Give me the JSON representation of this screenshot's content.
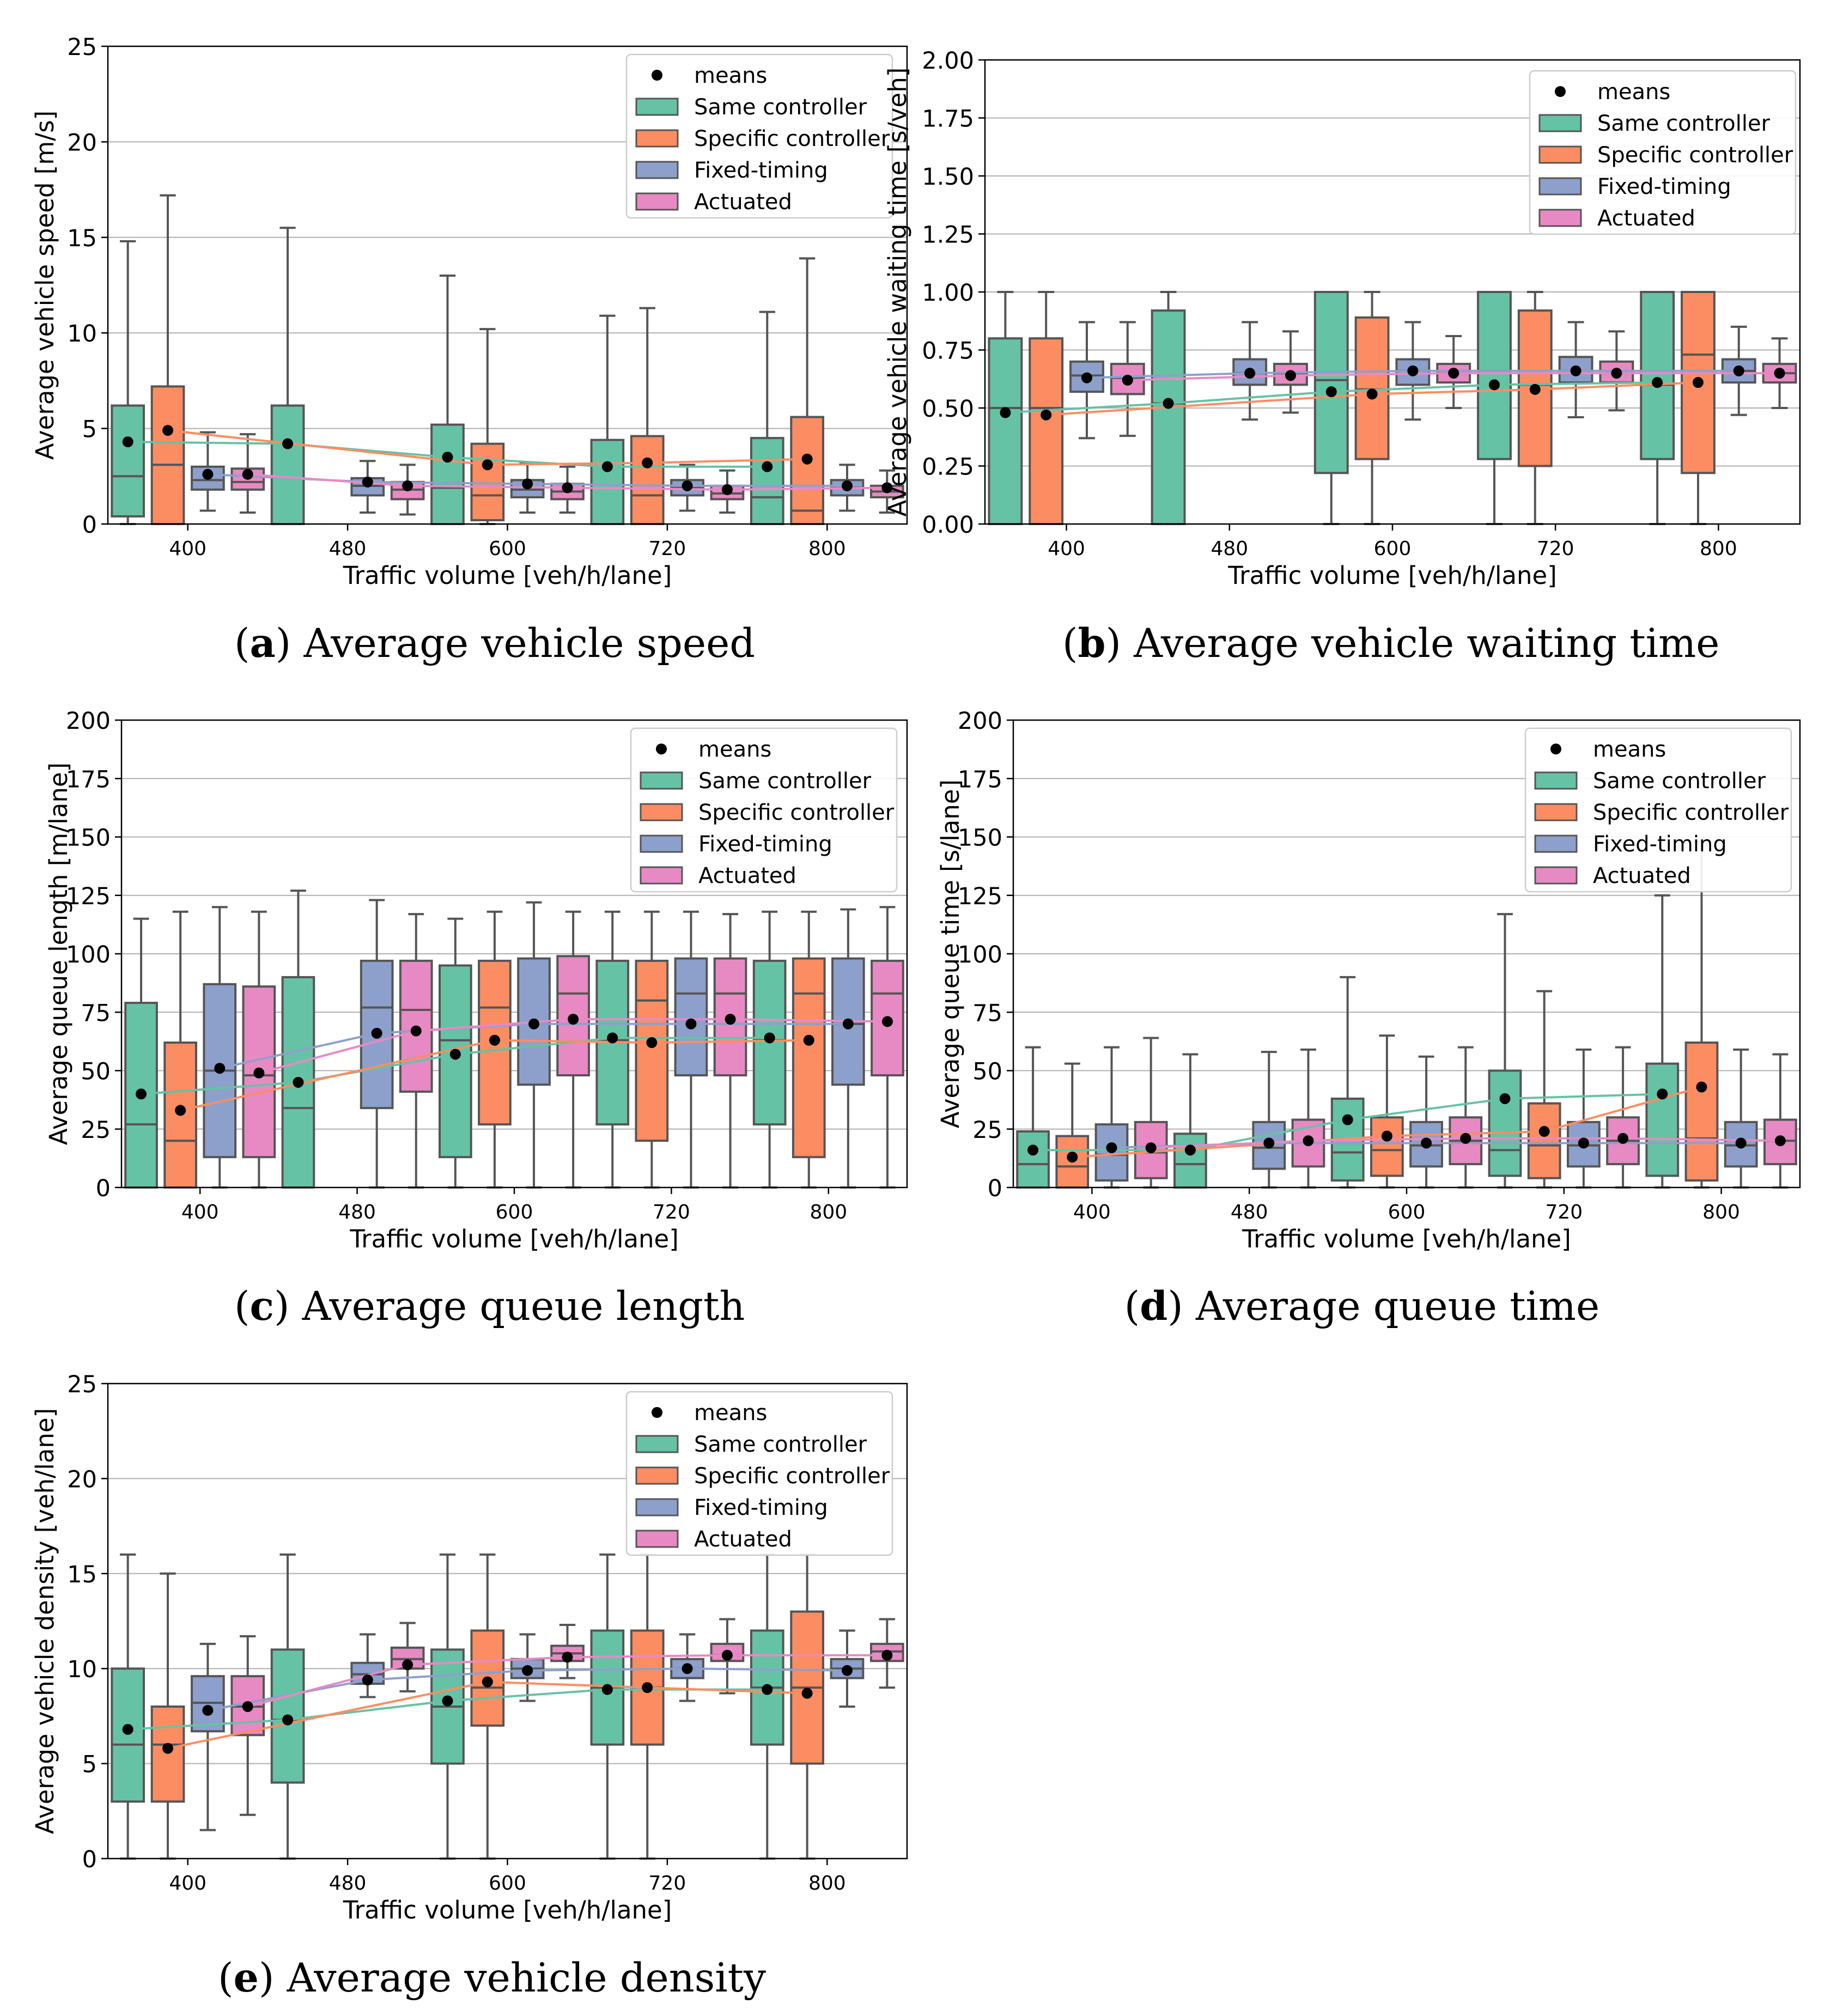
{
  "figure": {
    "panels": [
      {
        "label": "a",
        "caption": "Average vehicle speed"
      },
      {
        "label": "b",
        "caption": "Average vehicle waiting time"
      },
      {
        "label": "c",
        "caption": "Average queue length"
      },
      {
        "label": "d",
        "caption": "Average queue time"
      },
      {
        "label": "e",
        "caption": "Average vehicle density"
      }
    ]
  },
  "colors": {
    "same": "#66c2a5",
    "specific": "#fc8d62",
    "fixed": "#8da0cb",
    "actuated": "#e78ac3",
    "means": "#000000",
    "box_edge": "#555555",
    "grid": "#b0b0b0"
  },
  "chart_data": [
    {
      "type": "box",
      "panel": "a",
      "xlabel": "Traffic volume [veh/h/lane]",
      "ylabel": "Average vehicle speed [m/s]",
      "ylim": [
        0,
        25
      ],
      "yticks": [
        "0",
        "5",
        "10",
        "15",
        "20",
        "25"
      ],
      "categories": [
        "400",
        "480",
        "600",
        "720",
        "800"
      ],
      "legend": [
        "means",
        "Same controller",
        "Specific controller",
        "Fixed-timing",
        "Actuated"
      ],
      "series": [
        {
          "name": "Same controller",
          "key": "same",
          "boxes": [
            [
              0,
              0.4,
              2.5,
              6.2,
              14.8
            ],
            [
              0,
              0,
              0,
              6.2,
              15.5
            ],
            [
              0,
              0,
              1.9,
              5.2,
              13.0
            ],
            [
              0,
              0,
              0,
              4.4,
              10.9
            ],
            [
              0,
              0,
              1.4,
              4.5,
              11.1
            ]
          ],
          "means": [
            4.3,
            4.2,
            3.5,
            3.0,
            3.0
          ]
        },
        {
          "name": "Specific controller",
          "key": "specific",
          "boxes": [
            [
              0,
              0,
              3.1,
              7.2,
              17.2
            ],
            null,
            [
              0,
              0.2,
              1.5,
              4.2,
              10.2
            ],
            [
              0,
              0,
              1.5,
              4.6,
              11.3
            ],
            [
              0,
              0,
              0.7,
              5.6,
              13.9
            ]
          ],
          "means": [
            4.9,
            null,
            3.1,
            3.2,
            3.4
          ]
        },
        {
          "name": "Fixed-timing",
          "key": "fixed",
          "boxes": [
            [
              0.7,
              1.8,
              2.3,
              3.0,
              4.8
            ],
            [
              0.6,
              1.5,
              2.0,
              2.4,
              3.3
            ],
            [
              0.6,
              1.4,
              1.8,
              2.3,
              3.2
            ],
            [
              0.7,
              1.5,
              1.9,
              2.3,
              3.1
            ],
            [
              0.7,
              1.5,
              1.9,
              2.3,
              3.1
            ]
          ],
          "means": [
            2.6,
            2.2,
            2.1,
            2.0,
            2.0
          ]
        },
        {
          "name": "Actuated",
          "key": "actuated",
          "boxes": [
            [
              0.6,
              1.8,
              2.2,
              2.9,
              4.7
            ],
            [
              0.5,
              1.3,
              1.8,
              2.2,
              3.1
            ],
            [
              0.6,
              1.3,
              1.7,
              2.1,
              3.0
            ],
            [
              0.6,
              1.3,
              1.6,
              2.0,
              2.8
            ],
            [
              0.6,
              1.4,
              1.7,
              2.0,
              2.8
            ]
          ],
          "means": [
            2.6,
            2.0,
            1.9,
            1.8,
            1.9
          ]
        }
      ]
    },
    {
      "type": "box",
      "panel": "b",
      "xlabel": "Traffic volume [veh/h/lane]",
      "ylabel": "Average vehicle waiting time [s/veh]",
      "ylim": [
        0,
        2
      ],
      "yticks": [
        "0.00",
        "0.25",
        "0.50",
        "0.75",
        "1.00",
        "1.25",
        "1.50",
        "1.75",
        "2.00"
      ],
      "categories": [
        "400",
        "480",
        "600",
        "720",
        "800"
      ],
      "legend": [
        "means",
        "Same controller",
        "Specific controller",
        "Fixed-timing",
        "Actuated"
      ],
      "series": [
        {
          "name": "Same controller",
          "key": "same",
          "boxes": [
            [
              0,
              0,
              0.5,
              0.8,
              1.0
            ],
            [
              0,
              0,
              0.52,
              0.92,
              1.0
            ],
            [
              0,
              0.22,
              0.62,
              1.0,
              1.0
            ],
            [
              0,
              0.28,
              0.66,
              1.0,
              1.0
            ],
            [
              0,
              0.28,
              0.6,
              1.0,
              1.0
            ]
          ],
          "means": [
            0.48,
            0.52,
            0.57,
            0.6,
            0.61
          ]
        },
        {
          "name": "Specific controller",
          "key": "specific",
          "boxes": [
            [
              0,
              0,
              0.5,
              0.8,
              1.0
            ],
            null,
            [
              0,
              0.28,
              0.58,
              0.89,
              1.0
            ],
            [
              0,
              0.25,
              0.6,
              0.92,
              1.0
            ],
            [
              0,
              0.22,
              0.73,
              1.0,
              1.0
            ]
          ],
          "means": [
            0.47,
            null,
            0.56,
            0.58,
            0.61
          ]
        },
        {
          "name": "Fixed-timing",
          "key": "fixed",
          "boxes": [
            [
              0.37,
              0.57,
              0.64,
              0.7,
              0.87
            ],
            [
              0.45,
              0.6,
              0.65,
              0.71,
              0.87
            ],
            [
              0.45,
              0.6,
              0.66,
              0.71,
              0.87
            ],
            [
              0.46,
              0.61,
              0.66,
              0.72,
              0.87
            ],
            [
              0.47,
              0.61,
              0.66,
              0.71,
              0.85
            ]
          ],
          "means": [
            0.63,
            0.65,
            0.66,
            0.66,
            0.66
          ]
        },
        {
          "name": "Actuated",
          "key": "actuated",
          "boxes": [
            [
              0.38,
              0.56,
              0.63,
              0.69,
              0.87
            ],
            [
              0.48,
              0.6,
              0.65,
              0.69,
              0.83
            ],
            [
              0.5,
              0.61,
              0.65,
              0.69,
              0.81
            ],
            [
              0.49,
              0.61,
              0.65,
              0.7,
              0.83
            ],
            [
              0.5,
              0.61,
              0.65,
              0.69,
              0.8
            ]
          ],
          "means": [
            0.62,
            0.64,
            0.65,
            0.65,
            0.65
          ]
        }
      ]
    },
    {
      "type": "box",
      "panel": "c",
      "xlabel": "Traffic volume [veh/h/lane]",
      "ylabel": "Average queue length [m/lane]",
      "ylim": [
        0,
        200
      ],
      "yticks": [
        "0",
        "25",
        "50",
        "75",
        "100",
        "125",
        "150",
        "175",
        "200"
      ],
      "categories": [
        "400",
        "480",
        "600",
        "720",
        "800"
      ],
      "legend": [
        "means",
        "Same controller",
        "Specific controller",
        "Fixed-timing",
        "Actuated"
      ],
      "series": [
        {
          "name": "Same controller",
          "key": "same",
          "boxes": [
            [
              0,
              0,
              27,
              79,
              115
            ],
            [
              0,
              0,
              34,
              90,
              127
            ],
            [
              0,
              13,
              63,
              95,
              115
            ],
            [
              0,
              27,
              63,
              97,
              118
            ],
            [
              0,
              27,
              63,
              97,
              118
            ]
          ],
          "means": [
            40,
            45,
            57,
            64,
            64
          ]
        },
        {
          "name": "Specific controller",
          "key": "specific",
          "boxes": [
            [
              0,
              0,
              20,
              62,
              118
            ],
            null,
            [
              0,
              27,
              77,
              97,
              118
            ],
            [
              0,
              20,
              80,
              97,
              118
            ],
            [
              0,
              13,
              83,
              98,
              118
            ]
          ],
          "means": [
            33,
            null,
            63,
            62,
            63
          ]
        },
        {
          "name": "Fixed-timing",
          "key": "fixed",
          "boxes": [
            [
              0,
              13,
              50,
              87,
              120
            ],
            [
              0,
              34,
              77,
              97,
              123
            ],
            [
              0,
              44,
              70,
              98,
              122
            ],
            [
              0,
              48,
              83,
              98,
              118
            ],
            [
              0,
              44,
              70,
              98,
              119
            ]
          ],
          "means": [
            51,
            66,
            70,
            70,
            70
          ]
        },
        {
          "name": "Actuated",
          "key": "actuated",
          "boxes": [
            [
              0,
              13,
              48,
              86,
              118
            ],
            [
              0,
              41,
              76,
              97,
              117
            ],
            [
              0,
              48,
              83,
              99,
              118
            ],
            [
              0,
              48,
              83,
              98,
              117
            ],
            [
              0,
              48,
              83,
              97,
              120
            ]
          ],
          "means": [
            49,
            67,
            72,
            72,
            71
          ]
        }
      ]
    },
    {
      "type": "box",
      "panel": "d",
      "xlabel": "Traffic volume [veh/h/lane]",
      "ylabel": "Average queue time [s/lane]",
      "ylim": [
        0,
        200
      ],
      "yticks": [
        "0",
        "25",
        "50",
        "75",
        "100",
        "125",
        "150",
        "175",
        "200"
      ],
      "categories": [
        "400",
        "480",
        "600",
        "720",
        "800"
      ],
      "legend": [
        "means",
        "Same controller",
        "Specific controller",
        "Fixed-timing",
        "Actuated"
      ],
      "series": [
        {
          "name": "Same controller",
          "key": "same",
          "boxes": [
            [
              0,
              0,
              10,
              24,
              60
            ],
            [
              0,
              0,
              10,
              23,
              57
            ],
            [
              0,
              3,
              15,
              38,
              90
            ],
            [
              0,
              5,
              16,
              50,
              117
            ],
            [
              0,
              5,
              19,
              53,
              125
            ]
          ],
          "means": [
            16,
            16,
            29,
            38,
            40
          ]
        },
        {
          "name": "Specific controller",
          "key": "specific",
          "boxes": [
            [
              0,
              0,
              9,
              22,
              53
            ],
            null,
            [
              0,
              5,
              16,
              30,
              65
            ],
            [
              0,
              4,
              18,
              36,
              84
            ],
            [
              0,
              3,
              21,
              62,
              148
            ]
          ],
          "means": [
            13,
            null,
            22,
            24,
            43
          ]
        },
        {
          "name": "Fixed-timing",
          "key": "fixed",
          "boxes": [
            [
              0,
              3,
              14,
              27,
              60
            ],
            [
              0,
              8,
              17,
              28,
              58
            ],
            [
              0,
              9,
              18,
              28,
              56
            ],
            [
              0,
              9,
              18,
              28,
              59
            ],
            [
              0,
              9,
              18,
              28,
              59
            ]
          ],
          "means": [
            17,
            19,
            19,
            19,
            19
          ]
        },
        {
          "name": "Actuated",
          "key": "actuated",
          "boxes": [
            [
              0,
              4,
              15,
              28,
              64
            ],
            [
              0,
              9,
              19,
              29,
              59
            ],
            [
              0,
              10,
              20,
              30,
              60
            ],
            [
              0,
              10,
              20,
              30,
              60
            ],
            [
              0,
              10,
              20,
              29,
              57
            ]
          ],
          "means": [
            17,
            20,
            21,
            21,
            20
          ]
        }
      ]
    },
    {
      "type": "box",
      "panel": "e",
      "xlabel": "Traffic volume [veh/h/lane]",
      "ylabel": "Average vehicle density [veh/lane]",
      "ylim": [
        0,
        25
      ],
      "yticks": [
        "0",
        "5",
        "10",
        "15",
        "20",
        "25"
      ],
      "categories": [
        "400",
        "480",
        "600",
        "720",
        "800"
      ],
      "legend": [
        "means",
        "Same controller",
        "Specific controller",
        "Fixed-timing",
        "Actuated"
      ],
      "series": [
        {
          "name": "Same controller",
          "key": "same",
          "boxes": [
            [
              0,
              3,
              6,
              10,
              16
            ],
            [
              0,
              4,
              7.3,
              11,
              16
            ],
            [
              0,
              5,
              8,
              11,
              16
            ],
            [
              0,
              6,
              9,
              12,
              16
            ],
            [
              0,
              6,
              9,
              12,
              16
            ]
          ],
          "means": [
            6.8,
            7.3,
            8.3,
            8.9,
            8.9
          ]
        },
        {
          "name": "Specific controller",
          "key": "specific",
          "boxes": [
            [
              0,
              3,
              6,
              8,
              15
            ],
            null,
            [
              0,
              7,
              9,
              12,
              16
            ],
            [
              0,
              6,
              9,
              12,
              16
            ],
            [
              0,
              5,
              9,
              13,
              16
            ]
          ],
          "means": [
            5.8,
            null,
            9.3,
            9.0,
            8.7
          ]
        },
        {
          "name": "Fixed-timing",
          "key": "fixed",
          "boxes": [
            [
              1.5,
              6.7,
              8.2,
              9.6,
              11.3
            ],
            [
              8.5,
              9.2,
              9.7,
              10.3,
              11.8
            ],
            [
              8.3,
              9.5,
              10.0,
              10.5,
              11.8
            ],
            [
              8.3,
              9.5,
              10.0,
              10.5,
              11.8
            ],
            [
              8.0,
              9.5,
              10.0,
              10.5,
              12.0
            ]
          ],
          "means": [
            7.8,
            9.4,
            9.9,
            10.0,
            9.9
          ]
        },
        {
          "name": "Actuated",
          "key": "actuated",
          "boxes": [
            [
              2.3,
              6.5,
              8.0,
              9.6,
              11.7
            ],
            [
              8.8,
              10.0,
              10.5,
              11.1,
              12.4
            ],
            [
              9.5,
              10.4,
              10.8,
              11.2,
              12.3
            ],
            [
              8.7,
              10.4,
              10.7,
              11.3,
              12.6
            ],
            [
              9.0,
              10.4,
              10.9,
              11.3,
              12.6
            ]
          ],
          "means": [
            8.0,
            10.2,
            10.6,
            10.7,
            10.7
          ]
        }
      ]
    }
  ]
}
